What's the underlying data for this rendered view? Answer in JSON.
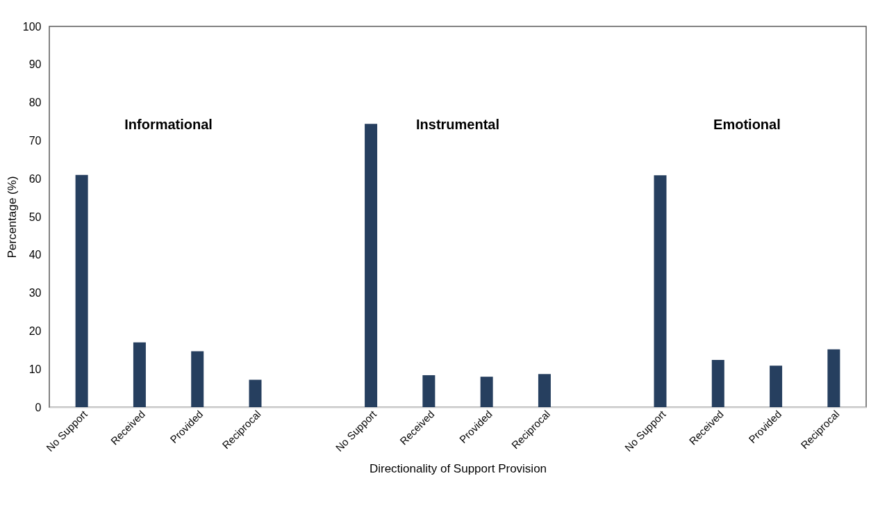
{
  "chart_data": {
    "type": "bar",
    "xlabel": "Directionality of Support Provision",
    "ylabel": "Percentage (%)",
    "categories": [
      "No Support",
      "Received",
      "Provided",
      "Reciprocal",
      null,
      "No Support",
      "Received",
      "Provided",
      "Reciprocal",
      null,
      "No Support",
      "Received",
      "Provided",
      "Reciprocal"
    ],
    "values": [
      61,
      17,
      14.7,
      7.2,
      null,
      74.4,
      8.4,
      8,
      8.7,
      null,
      60.9,
      12.4,
      10.9,
      15.2
    ],
    "color": "#263f5f",
    "ylim": [
      0,
      100
    ],
    "yticks": [
      0,
      10,
      20,
      30,
      40,
      50,
      60,
      70,
      80,
      90,
      100
    ],
    "annotations": [
      "Informational",
      "Instrumental",
      "Emotional"
    ],
    "grid": false
  }
}
